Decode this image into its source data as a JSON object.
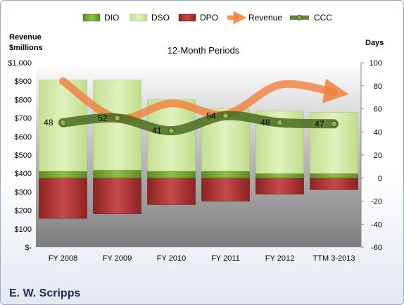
{
  "company": "E. W. Scripps",
  "chart_data": {
    "type": "bar",
    "title": "12-Month Periods",
    "ylabel_left": [
      "Revenue",
      "$millions"
    ],
    "ylabel_right": "Days",
    "categories": [
      "FY 2008",
      "FY 2009",
      "FY 2010",
      "FY 2011",
      "FY 2012",
      "TTM 3-2013"
    ],
    "y_left": {
      "min": 0,
      "max": 1000,
      "step": 100,
      "tick_labels": [
        "$-",
        "$100",
        "$200",
        "$300",
        "$400",
        "$500",
        "$600",
        "$700",
        "$800",
        "$900",
        "$1,000"
      ]
    },
    "y_right": {
      "min": -60,
      "max": 100,
      "step": 20,
      "tick_labels": [
        "-60",
        "-40",
        "-20",
        "0",
        "20",
        "40",
        "60",
        "80",
        "100"
      ]
    },
    "series": [
      {
        "name": "DIO",
        "axis": "right",
        "values": [
          6,
          7,
          6,
          6,
          4,
          4
        ],
        "color": "#6f9f2e"
      },
      {
        "name": "DSO",
        "axis": "right",
        "values": [
          79,
          78,
          62,
          54,
          54,
          53
        ],
        "color": "#d5eaa8"
      },
      {
        "name": "DPO",
        "axis": "right",
        "values": [
          -35,
          -31,
          -23,
          -20,
          -14,
          -10
        ],
        "color": "#b73a3a"
      },
      {
        "name": "Revenue",
        "axis": "left",
        "values": [
          900,
          700,
          780,
          720,
          880,
          840
        ],
        "color": "#f0803c"
      },
      {
        "name": "CCC",
        "axis": "right",
        "values": [
          48,
          52,
          41,
          54,
          48,
          47
        ],
        "color": "#4a6b1e"
      }
    ],
    "ccc_labels": [
      "48",
      "52",
      "41",
      "54",
      "48",
      "47"
    ],
    "legend": [
      "DIO",
      "DSO",
      "DPO",
      "Revenue",
      "CCC"
    ],
    "legend_position": "top",
    "grid": false
  }
}
